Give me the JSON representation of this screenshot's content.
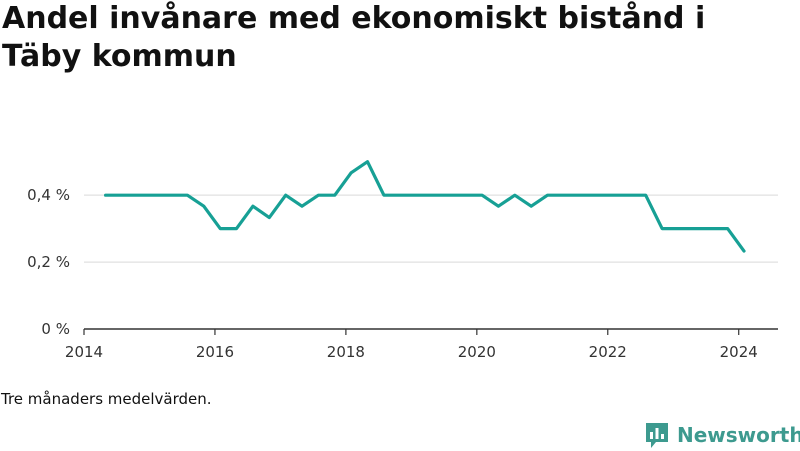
{
  "title": "Andel invånare med ekonomiskt bistånd i Täby kommun",
  "caption": "Tre månaders medelvärden.",
  "brand": {
    "name": "Newsworthy",
    "icon": "newsworthy-logo-icon",
    "color": "#3d9a8f"
  },
  "colors": {
    "line": "#17a095",
    "grid": "#d9d9d9",
    "axis": "#333333"
  },
  "chart_data": {
    "type": "line",
    "title": "Andel invånare med ekonomiskt bistånd i Täby kommun",
    "xlabel": "",
    "ylabel": "",
    "xlim": [
      2014.0,
      2024.6
    ],
    "ylim": [
      0,
      0.55
    ],
    "y_ticks": [
      0,
      0.2,
      0.4
    ],
    "y_tick_labels": [
      "0 %",
      "0,2 %",
      "0,4 %"
    ],
    "x_ticks": [
      2014,
      2016,
      2018,
      2020,
      2022,
      2024
    ],
    "x_tick_labels": [
      "2014",
      "2016",
      "2018",
      "2020",
      "2022",
      "2024"
    ],
    "grid": true,
    "legend": "none",
    "series": [
      {
        "x": [
          2014.33,
          2014.58,
          2014.83,
          2015.08,
          2015.33,
          2015.58,
          2015.83,
          2016.08,
          2016.33,
          2016.58,
          2016.83,
          2017.08,
          2017.33,
          2017.58,
          2017.83,
          2018.08,
          2018.33,
          2018.58,
          2018.83,
          2019.08,
          2019.33,
          2019.58,
          2019.83,
          2020.08,
          2020.33,
          2020.58,
          2020.83,
          2021.08,
          2021.33,
          2021.58,
          2021.83,
          2022.08,
          2022.33,
          2022.58,
          2022.83,
          2023.08,
          2023.33,
          2023.58,
          2023.83,
          2024.08
        ],
        "values": [
          0.4,
          0.4,
          0.4,
          0.4,
          0.4,
          0.4,
          0.367,
          0.3,
          0.3,
          0.367,
          0.333,
          0.4,
          0.367,
          0.4,
          0.4,
          0.467,
          0.5,
          0.4,
          0.4,
          0.4,
          0.4,
          0.4,
          0.4,
          0.4,
          0.367,
          0.4,
          0.367,
          0.4,
          0.4,
          0.4,
          0.4,
          0.4,
          0.4,
          0.4,
          0.3,
          0.3,
          0.3,
          0.3,
          0.3,
          0.233
        ]
      }
    ]
  }
}
